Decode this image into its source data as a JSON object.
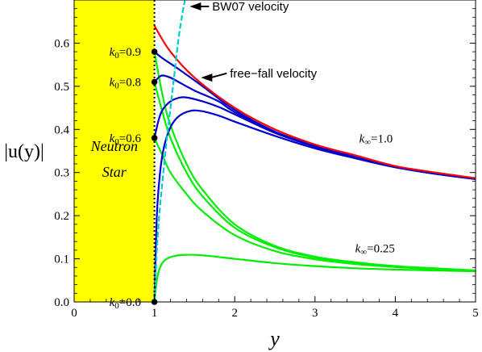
{
  "chart_data": {
    "type": "line",
    "xlabel": "y",
    "ylabel": "|u(y)|",
    "xlim": [
      0,
      5
    ],
    "ylim": [
      0,
      0.7
    ],
    "x_ticks": [
      {
        "value": 0,
        "label": "0"
      },
      {
        "value": 1,
        "label": "1"
      },
      {
        "value": 2,
        "label": "2"
      },
      {
        "value": 3,
        "label": "3"
      },
      {
        "value": 4,
        "label": "4"
      },
      {
        "value": 5,
        "label": "5"
      }
    ],
    "y_ticks": [
      {
        "value": 0.0,
        "label": "0.0"
      },
      {
        "value": 0.1,
        "label": "0.1"
      },
      {
        "value": 0.2,
        "label": "0.2"
      },
      {
        "value": 0.3,
        "label": "0.3"
      },
      {
        "value": 0.4,
        "label": "0.4"
      },
      {
        "value": 0.5,
        "label": "0.5"
      },
      {
        "value": 0.6,
        "label": "0.6"
      }
    ],
    "neutron_star": {
      "label_line1": "Neutron",
      "label_line2": "Star",
      "x_range": [
        0,
        1
      ],
      "color": "#ffff00",
      "boundary_color": "#000000"
    },
    "colors": {
      "free_fall": "#ff0000",
      "k_inf_1": "#0000cc",
      "k_inf_025": "#00ee00",
      "bw07": "#00cccc"
    },
    "series": [
      {
        "name": "free-fall velocity",
        "group": "free_fall",
        "x": [
          1.0,
          1.2,
          1.5,
          2.0,
          2.5,
          3.0,
          3.5,
          4.0,
          4.5,
          5.0
        ],
        "y": [
          0.64,
          0.58,
          0.52,
          0.45,
          0.4,
          0.365,
          0.34,
          0.315,
          0.3,
          0.287
        ]
      },
      {
        "group": "k_inf_1",
        "x": [
          1.0,
          1.1,
          1.3,
          1.6,
          2.0,
          2.5,
          3.0,
          3.5,
          4.0,
          4.5,
          5.0
        ],
        "y": [
          0.58,
          0.565,
          0.54,
          0.5,
          0.445,
          0.395,
          0.362,
          0.336,
          0.314,
          0.298,
          0.285
        ]
      },
      {
        "group": "k_inf_1",
        "x": [
          1.0,
          1.05,
          1.1,
          1.2,
          1.3,
          1.5,
          1.8,
          2.0,
          2.5,
          3.0,
          3.5,
          4.0,
          4.5,
          5.0
        ],
        "y": [
          0.51,
          0.52,
          0.525,
          0.52,
          0.51,
          0.49,
          0.465,
          0.44,
          0.393,
          0.36,
          0.335,
          0.313,
          0.297,
          0.285
        ]
      },
      {
        "group": "k_inf_1",
        "x": [
          1.0,
          1.05,
          1.1,
          1.2,
          1.3,
          1.4,
          1.6,
          1.8,
          2.0,
          2.5,
          3.0,
          3.5,
          4.0,
          4.5,
          5.0
        ],
        "y": [
          0.38,
          0.42,
          0.445,
          0.465,
          0.473,
          0.474,
          0.465,
          0.452,
          0.435,
          0.392,
          0.36,
          0.335,
          0.313,
          0.297,
          0.285
        ]
      },
      {
        "group": "k_inf_1",
        "x": [
          1.0,
          1.03,
          1.07,
          1.12,
          1.2,
          1.3,
          1.45,
          1.6,
          1.8,
          2.0,
          2.5,
          3.0,
          3.5,
          4.0,
          4.5,
          5.0
        ],
        "y": [
          0.0,
          0.2,
          0.3,
          0.36,
          0.405,
          0.43,
          0.443,
          0.442,
          0.432,
          0.418,
          0.385,
          0.356,
          0.333,
          0.312,
          0.297,
          0.285
        ]
      },
      {
        "group": "k_inf_025",
        "x": [
          1.0,
          1.1,
          1.2,
          1.4,
          1.6,
          2.0,
          2.5,
          3.0,
          3.5,
          4.0,
          4.5,
          5.0
        ],
        "y": [
          0.58,
          0.48,
          0.41,
          0.32,
          0.26,
          0.18,
          0.13,
          0.105,
          0.092,
          0.083,
          0.078,
          0.073
        ]
      },
      {
        "group": "k_inf_025",
        "x": [
          1.0,
          1.1,
          1.2,
          1.4,
          1.6,
          2.0,
          2.5,
          3.0,
          3.5,
          4.0,
          4.5,
          5.0
        ],
        "y": [
          0.51,
          0.44,
          0.38,
          0.3,
          0.245,
          0.172,
          0.127,
          0.103,
          0.09,
          0.082,
          0.077,
          0.072
        ]
      },
      {
        "group": "k_inf_025",
        "x": [
          1.0,
          1.1,
          1.2,
          1.4,
          1.6,
          2.0,
          2.5,
          3.0,
          3.5,
          4.0,
          4.5,
          5.0
        ],
        "y": [
          0.38,
          0.34,
          0.3,
          0.25,
          0.21,
          0.155,
          0.118,
          0.099,
          0.088,
          0.081,
          0.076,
          0.072
        ]
      },
      {
        "group": "k_inf_025",
        "x": [
          1.0,
          1.03,
          1.07,
          1.12,
          1.2,
          1.35,
          1.6,
          2.0,
          2.5,
          3.0,
          3.5,
          4.0,
          4.5,
          5.0
        ],
        "y": [
          0.0,
          0.05,
          0.08,
          0.095,
          0.104,
          0.109,
          0.108,
          0.1,
          0.09,
          0.083,
          0.078,
          0.075,
          0.073,
          0.071
        ]
      },
      {
        "name": "BW07 velocity",
        "group": "bw07",
        "dashed": true,
        "x": [
          1.0,
          1.03,
          1.06,
          1.1,
          1.15,
          1.2,
          1.25,
          1.3,
          1.35,
          1.4
        ],
        "y": [
          0.0,
          0.12,
          0.2,
          0.28,
          0.37,
          0.45,
          0.53,
          0.61,
          0.67,
          0.72
        ]
      }
    ],
    "initial_points": [
      {
        "label": "k₀=0.9",
        "k0": "0.9",
        "x": 1.0,
        "y": 0.58
      },
      {
        "label": "k₀=0.8",
        "k0": "0.8",
        "x": 1.0,
        "y": 0.51
      },
      {
        "label": "k₀=0.6",
        "k0": "0.6",
        "x": 1.0,
        "y": 0.38
      },
      {
        "label": "k₀=0.0",
        "k0": "0.0",
        "x": 1.0,
        "y": 0.0
      }
    ],
    "annotations": {
      "bw07": {
        "text": "BW07 velocity",
        "arrow_tip": [
          1.44,
          0.685
        ],
        "text_at": [
          1.72,
          0.685
        ]
      },
      "free_fall": {
        "text": "free−fall velocity",
        "arrow_tip": [
          1.58,
          0.52
        ],
        "text_at": [
          1.94,
          0.53
        ]
      },
      "k_inf_1": {
        "text": "k∞=1.0",
        "text_at": [
          3.55,
          0.37
        ]
      },
      "k_inf_025": {
        "text": "k∞=0.25",
        "text_at": [
          3.5,
          0.115
        ]
      }
    }
  }
}
